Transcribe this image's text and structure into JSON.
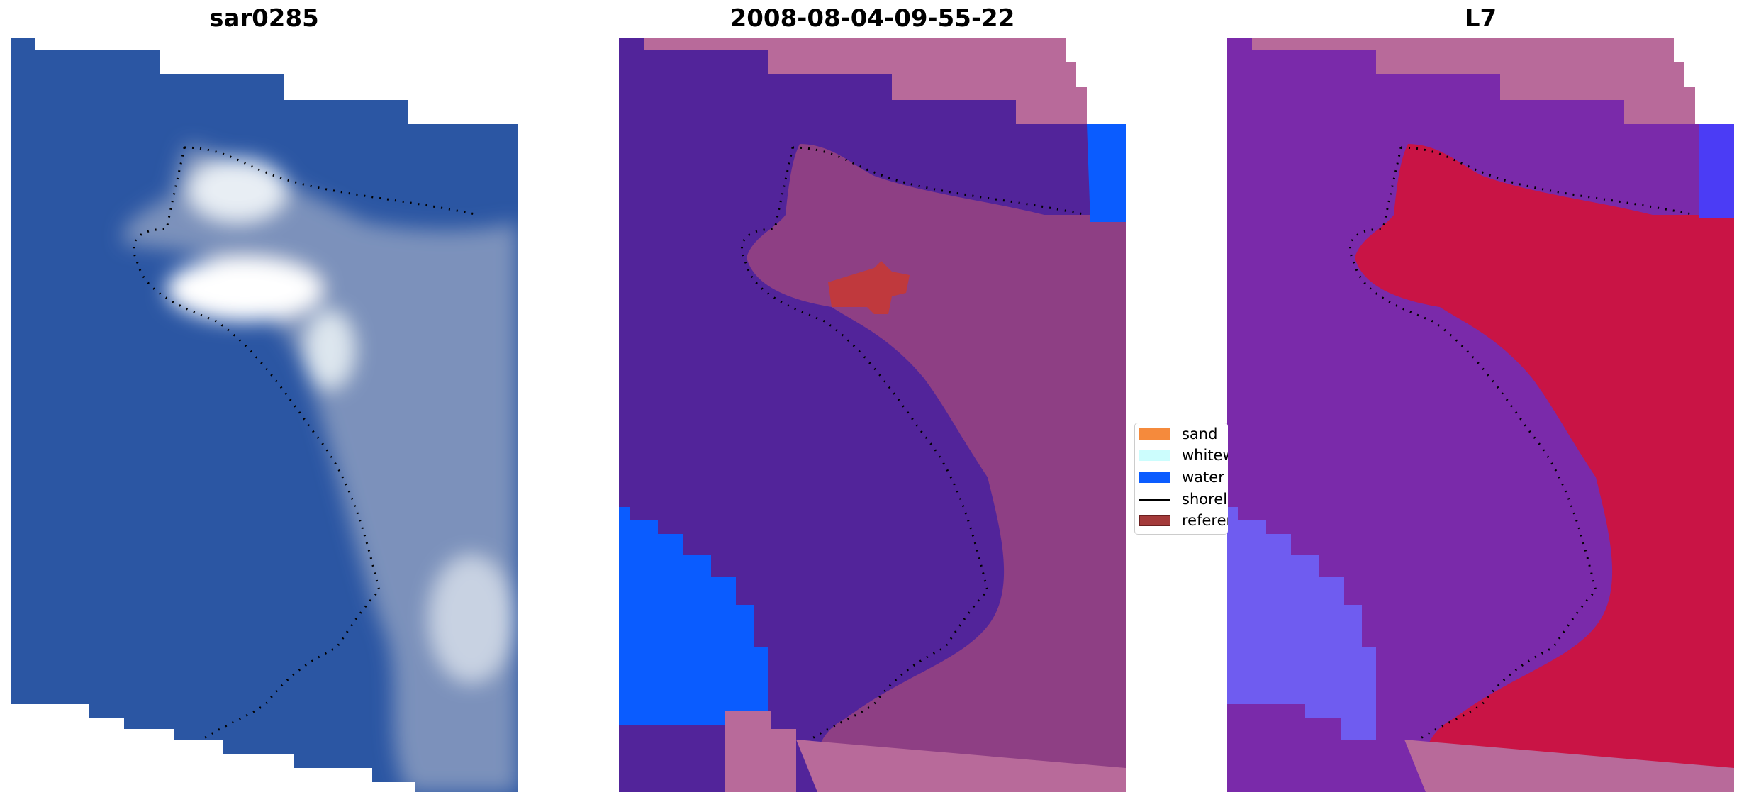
{
  "panels": [
    {
      "title": "sar0285",
      "kind": "rgb-image"
    },
    {
      "title": "2008-08-04-09-55-22",
      "kind": "classification"
    },
    {
      "title": "L7",
      "kind": "index-map"
    }
  ],
  "legend": {
    "items": [
      {
        "label": "sand",
        "color": "#f58a3c",
        "type": "patch"
      },
      {
        "label": "whitewater",
        "color": "#ccfdfd",
        "type": "patch"
      },
      {
        "label": "water",
        "color": "#0a5cff",
        "type": "patch"
      },
      {
        "label": "shoreline",
        "color": "#000000",
        "type": "line"
      },
      {
        "label": "reference",
        "color": "#a33a3a",
        "type": "patch"
      }
    ]
  },
  "colors": {
    "sea_rgb": "#2b56a3",
    "class_water_bg": "#52249a",
    "class_land": "#b86a9a",
    "index_water": "#7a2aaa",
    "index_land": "#c91445"
  }
}
